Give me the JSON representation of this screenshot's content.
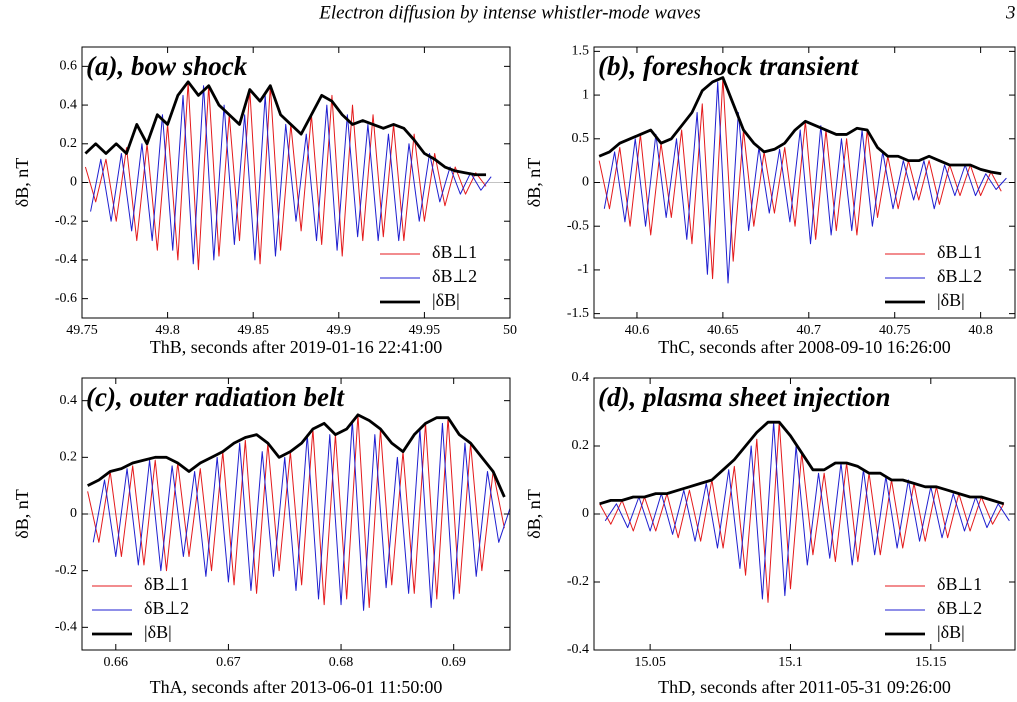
{
  "header": {
    "running_title": "Electron diffusion by intense whistler-mode waves",
    "page": "3"
  },
  "chart_data": [
    {
      "type": "line",
      "title": "(a), bow shock",
      "xlabel": "ThB, seconds after 2019-01-16 22:41:00",
      "ylabel": "δB, nT",
      "xlim": [
        49.75,
        50
      ],
      "xticks": [
        49.75,
        49.8,
        49.85,
        49.9,
        49.95,
        50
      ],
      "ylim": [
        -0.7,
        0.7
      ],
      "yticks": [
        -0.6,
        -0.4,
        -0.2,
        0,
        0.2,
        0.4,
        0.6
      ],
      "legend": "lower right",
      "x": [
        49.752,
        49.758,
        49.764,
        49.77,
        49.776,
        49.782,
        49.788,
        49.794,
        49.8,
        49.806,
        49.812,
        49.818,
        49.824,
        49.83,
        49.836,
        49.842,
        49.848,
        49.854,
        49.86,
        49.866,
        49.872,
        49.878,
        49.884,
        49.89,
        49.896,
        49.902,
        49.908,
        49.914,
        49.92,
        49.926,
        49.932,
        49.938,
        49.944,
        49.95,
        49.956,
        49.962,
        49.968,
        49.974,
        49.98,
        49.986
      ],
      "series": [
        {
          "name": "δB⊥1",
          "color": "#e41a1c",
          "values": [
            0.08,
            -0.1,
            0.12,
            -0.2,
            0.18,
            -0.3,
            0.2,
            -0.35,
            0.3,
            -0.4,
            0.52,
            -0.45,
            0.5,
            -0.38,
            0.35,
            -0.3,
            0.48,
            -0.42,
            0.5,
            -0.35,
            0.3,
            -0.25,
            0.35,
            -0.32,
            0.45,
            -0.38,
            0.4,
            -0.3,
            0.35,
            -0.28,
            0.3,
            -0.3,
            0.25,
            -0.2,
            0.15,
            -0.12,
            0.08,
            -0.06,
            0.05,
            -0.02
          ]
        },
        {
          "name": "δB⊥2",
          "color": "#1f1fd0",
          "x": [
            49.755,
            49.761,
            49.767,
            49.773,
            49.779,
            49.785,
            49.791,
            49.797,
            49.803,
            49.809,
            49.815,
            49.821,
            49.827,
            49.833,
            49.839,
            49.845,
            49.851,
            49.857,
            49.863,
            49.869,
            49.875,
            49.881,
            49.887,
            49.893,
            49.899,
            49.905,
            49.911,
            49.917,
            49.923,
            49.929,
            49.935,
            49.941,
            49.947,
            49.953,
            49.959,
            49.965,
            49.971,
            49.977,
            49.983,
            49.989
          ],
          "values": [
            -0.15,
            0.12,
            -0.2,
            0.15,
            -0.25,
            0.2,
            -0.3,
            0.35,
            -0.35,
            0.45,
            -0.42,
            0.5,
            -0.4,
            0.4,
            -0.32,
            0.35,
            -0.4,
            0.45,
            -0.38,
            0.3,
            -0.2,
            0.25,
            -0.3,
            0.4,
            -0.35,
            0.35,
            -0.28,
            0.3,
            -0.3,
            0.25,
            -0.3,
            0.2,
            -0.2,
            0.15,
            -0.1,
            0.08,
            -0.06,
            0.05,
            -0.04,
            0.03
          ]
        },
        {
          "name": "|δB|",
          "color": "#000000",
          "values": [
            0.15,
            0.2,
            0.15,
            0.2,
            0.15,
            0.3,
            0.2,
            0.35,
            0.3,
            0.45,
            0.52,
            0.45,
            0.5,
            0.4,
            0.35,
            0.3,
            0.48,
            0.42,
            0.5,
            0.35,
            0.3,
            0.25,
            0.35,
            0.45,
            0.42,
            0.35,
            0.3,
            0.32,
            0.3,
            0.28,
            0.3,
            0.28,
            0.22,
            0.15,
            0.12,
            0.08,
            0.06,
            0.05,
            0.04,
            0.04
          ]
        }
      ]
    },
    {
      "type": "line",
      "title": "(b), foreshock transient",
      "xlabel": "ThC, seconds after 2008-09-10 16:26:00",
      "ylabel": "δB, nT",
      "xlim": [
        40.575,
        40.82
      ],
      "xticks": [
        40.6,
        40.65,
        40.7,
        40.75,
        40.8
      ],
      "ylim": [
        -1.55,
        1.55
      ],
      "yticks": [
        -1.5,
        -1,
        -0.5,
        0,
        0.5,
        1,
        1.5
      ],
      "legend": "lower right",
      "x": [
        40.578,
        40.584,
        40.59,
        40.596,
        40.602,
        40.608,
        40.614,
        40.62,
        40.626,
        40.632,
        40.638,
        40.644,
        40.65,
        40.656,
        40.662,
        40.668,
        40.674,
        40.68,
        40.686,
        40.692,
        40.698,
        40.704,
        40.71,
        40.716,
        40.722,
        40.728,
        40.734,
        40.74,
        40.746,
        40.752,
        40.758,
        40.764,
        40.77,
        40.776,
        40.782,
        40.788,
        40.794,
        40.8,
        40.806,
        40.812
      ],
      "series": [
        {
          "name": "δB⊥1",
          "color": "#e41a1c",
          "values": [
            0.25,
            -0.3,
            0.4,
            -0.5,
            0.55,
            -0.6,
            0.45,
            -0.4,
            0.6,
            -0.7,
            0.9,
            -1.1,
            1.2,
            -0.9,
            0.6,
            -0.5,
            0.35,
            -0.35,
            0.4,
            -0.5,
            0.7,
            -0.65,
            0.6,
            -0.55,
            0.5,
            -0.6,
            0.6,
            -0.4,
            0.3,
            -0.3,
            0.25,
            -0.2,
            0.25,
            -0.25,
            0.2,
            -0.15,
            0.2,
            -0.15,
            0.12,
            -0.1
          ]
        },
        {
          "name": "δB⊥2",
          "color": "#1f1fd0",
          "x": [
            40.581,
            40.587,
            40.593,
            40.599,
            40.605,
            40.611,
            40.617,
            40.623,
            40.629,
            40.635,
            40.641,
            40.647,
            40.653,
            40.659,
            40.665,
            40.671,
            40.677,
            40.683,
            40.689,
            40.695,
            40.701,
            40.707,
            40.713,
            40.719,
            40.725,
            40.731,
            40.737,
            40.743,
            40.749,
            40.755,
            40.761,
            40.767,
            40.773,
            40.779,
            40.785,
            40.791,
            40.797,
            40.803,
            40.809,
            40.815
          ],
          "values": [
            -0.3,
            0.35,
            -0.45,
            0.5,
            -0.5,
            0.55,
            -0.4,
            0.5,
            -0.65,
            0.8,
            -1.05,
            1.15,
            -1.15,
            0.8,
            -0.55,
            0.4,
            -0.35,
            0.38,
            -0.45,
            0.6,
            -0.7,
            0.65,
            -0.6,
            0.5,
            -0.55,
            0.6,
            -0.5,
            0.35,
            -0.3,
            0.25,
            -0.2,
            0.25,
            -0.3,
            0.2,
            -0.15,
            0.2,
            -0.15,
            0.1,
            -0.08,
            0.05
          ]
        },
        {
          "name": "|δB|",
          "color": "#000000",
          "values": [
            0.3,
            0.35,
            0.45,
            0.5,
            0.55,
            0.6,
            0.45,
            0.5,
            0.65,
            0.8,
            1.05,
            1.15,
            1.2,
            0.9,
            0.6,
            0.45,
            0.35,
            0.38,
            0.45,
            0.6,
            0.7,
            0.65,
            0.6,
            0.55,
            0.55,
            0.62,
            0.6,
            0.4,
            0.3,
            0.3,
            0.25,
            0.25,
            0.3,
            0.25,
            0.2,
            0.2,
            0.2,
            0.15,
            0.12,
            0.1
          ]
        }
      ]
    },
    {
      "type": "line",
      "title": "(c), outer radiation belt",
      "xlabel": "ThA, seconds after 2013-06-01 11:50:00",
      "ylabel": "δB, nT",
      "xlim": [
        0.657,
        0.695
      ],
      "xticks": [
        0.66,
        0.67,
        0.68,
        0.69
      ],
      "ylim": [
        -0.48,
        0.48
      ],
      "yticks": [
        -0.4,
        -0.2,
        0,
        0.2,
        0.4
      ],
      "legend": "lower left",
      "x": [
        0.6575,
        0.6585,
        0.6595,
        0.6605,
        0.6615,
        0.6625,
        0.6635,
        0.6645,
        0.6655,
        0.6665,
        0.6675,
        0.6685,
        0.6695,
        0.6705,
        0.6715,
        0.6725,
        0.6735,
        0.6745,
        0.6755,
        0.6765,
        0.6775,
        0.6785,
        0.6795,
        0.6805,
        0.6815,
        0.6825,
        0.6835,
        0.6845,
        0.6855,
        0.6865,
        0.6875,
        0.6885,
        0.6895,
        0.6905,
        0.6915,
        0.6925,
        0.6935,
        0.6945
      ],
      "series": [
        {
          "name": "δB⊥1",
          "color": "#e41a1c",
          "values": [
            0.08,
            -0.1,
            0.15,
            -0.15,
            0.17,
            -0.18,
            0.19,
            -0.2,
            0.18,
            -0.15,
            0.16,
            -0.2,
            0.22,
            -0.25,
            0.26,
            -0.28,
            0.25,
            -0.2,
            0.22,
            -0.25,
            0.3,
            -0.32,
            0.28,
            -0.3,
            0.35,
            -0.33,
            0.3,
            -0.25,
            0.22,
            -0.28,
            0.32,
            -0.3,
            0.34,
            -0.28,
            0.25,
            -0.2,
            0.15,
            -0.05
          ]
        },
        {
          "name": "δB⊥2",
          "color": "#1f1fd0",
          "x": [
            0.658,
            0.659,
            0.66,
            0.661,
            0.662,
            0.663,
            0.664,
            0.665,
            0.666,
            0.667,
            0.668,
            0.669,
            0.67,
            0.671,
            0.672,
            0.673,
            0.674,
            0.675,
            0.676,
            0.677,
            0.678,
            0.679,
            0.68,
            0.681,
            0.682,
            0.683,
            0.684,
            0.685,
            0.686,
            0.687,
            0.688,
            0.689,
            0.69,
            0.691,
            0.692,
            0.693,
            0.694,
            0.695
          ],
          "values": [
            -0.1,
            0.12,
            -0.15,
            0.16,
            -0.18,
            0.19,
            -0.2,
            0.17,
            -0.15,
            0.15,
            -0.22,
            0.2,
            -0.24,
            0.25,
            -0.27,
            0.22,
            -0.22,
            0.2,
            -0.27,
            0.28,
            -0.3,
            0.28,
            -0.32,
            0.33,
            -0.34,
            0.28,
            -0.26,
            0.2,
            -0.28,
            0.3,
            -0.33,
            0.32,
            -0.3,
            0.25,
            -0.22,
            0.15,
            -0.1,
            0.02
          ]
        },
        {
          "name": "|δB|",
          "color": "#000000",
          "values": [
            0.1,
            0.12,
            0.15,
            0.16,
            0.18,
            0.19,
            0.2,
            0.2,
            0.18,
            0.15,
            0.18,
            0.2,
            0.22,
            0.25,
            0.27,
            0.28,
            0.25,
            0.2,
            0.22,
            0.25,
            0.3,
            0.32,
            0.28,
            0.3,
            0.35,
            0.33,
            0.3,
            0.25,
            0.22,
            0.28,
            0.32,
            0.34,
            0.34,
            0.28,
            0.25,
            0.2,
            0.15,
            0.06
          ]
        }
      ]
    },
    {
      "type": "line",
      "title": "(d), plasma sheet injection",
      "xlabel": "ThD, seconds after 2011-05-31 09:26:00",
      "ylabel": "δB, nT",
      "xlim": [
        15.03,
        15.18
      ],
      "xticks": [
        15.05,
        15.1,
        15.15
      ],
      "ylim": [
        -0.4,
        0.4
      ],
      "yticks": [
        -0.4,
        -0.2,
        0,
        0.2,
        0.4
      ],
      "legend": "lower right",
      "x": [
        15.032,
        15.036,
        15.04,
        15.044,
        15.048,
        15.052,
        15.056,
        15.06,
        15.064,
        15.068,
        15.072,
        15.076,
        15.08,
        15.084,
        15.088,
        15.092,
        15.096,
        15.1,
        15.104,
        15.108,
        15.112,
        15.116,
        15.12,
        15.124,
        15.128,
        15.132,
        15.136,
        15.14,
        15.144,
        15.148,
        15.152,
        15.156,
        15.16,
        15.164,
        15.168,
        15.172,
        15.176
      ],
      "series": [
        {
          "name": "δB⊥1",
          "color": "#e41a1c",
          "values": [
            0.03,
            -0.03,
            0.04,
            -0.05,
            0.05,
            -0.05,
            0.06,
            -0.07,
            0.07,
            -0.08,
            0.1,
            -0.1,
            0.14,
            -0.18,
            0.22,
            -0.26,
            0.27,
            -0.22,
            0.18,
            -0.12,
            0.12,
            -0.14,
            0.15,
            -0.14,
            0.12,
            -0.12,
            0.1,
            -0.1,
            0.09,
            -0.08,
            0.08,
            -0.07,
            0.06,
            -0.05,
            0.05,
            -0.03,
            0.03
          ]
        },
        {
          "name": "δB⊥2",
          "color": "#1f1fd0",
          "x": [
            15.034,
            15.038,
            15.042,
            15.046,
            15.05,
            15.054,
            15.058,
            15.062,
            15.066,
            15.07,
            15.074,
            15.078,
            15.082,
            15.086,
            15.09,
            15.094,
            15.098,
            15.102,
            15.106,
            15.11,
            15.114,
            15.118,
            15.122,
            15.126,
            15.13,
            15.134,
            15.138,
            15.142,
            15.146,
            15.15,
            15.154,
            15.158,
            15.162,
            15.166,
            15.17,
            15.174,
            15.178
          ],
          "values": [
            -0.02,
            0.03,
            -0.04,
            0.05,
            -0.05,
            0.06,
            -0.06,
            0.07,
            -0.08,
            0.09,
            -0.1,
            0.13,
            -0.16,
            0.2,
            -0.25,
            0.27,
            -0.24,
            0.2,
            -0.15,
            0.12,
            -0.13,
            0.15,
            -0.15,
            0.13,
            -0.12,
            0.11,
            -0.1,
            0.1,
            -0.08,
            0.08,
            -0.07,
            0.06,
            -0.05,
            0.05,
            -0.04,
            0.03,
            -0.02
          ]
        },
        {
          "name": "|δB|",
          "color": "#000000",
          "values": [
            0.03,
            0.04,
            0.04,
            0.05,
            0.05,
            0.06,
            0.06,
            0.07,
            0.08,
            0.09,
            0.1,
            0.13,
            0.16,
            0.2,
            0.24,
            0.27,
            0.27,
            0.23,
            0.18,
            0.13,
            0.13,
            0.15,
            0.15,
            0.14,
            0.12,
            0.12,
            0.1,
            0.1,
            0.09,
            0.08,
            0.08,
            0.07,
            0.06,
            0.05,
            0.05,
            0.04,
            0.03
          ]
        }
      ]
    }
  ]
}
